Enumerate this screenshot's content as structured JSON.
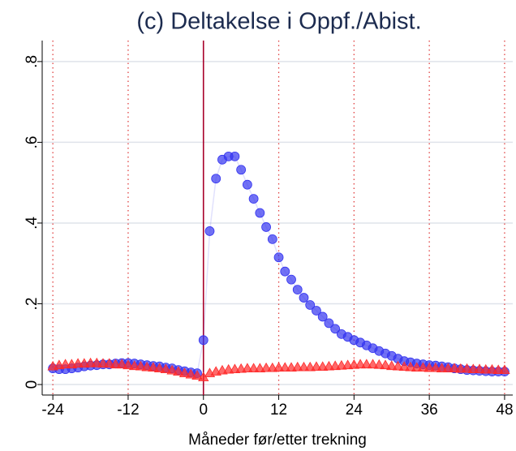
{
  "chart_data": {
    "type": "scatter",
    "title": "(c) Deltakelse i Oppf./Abist.",
    "x_label": "Måneder før/etter trekning",
    "x": [
      -24,
      -23,
      -22,
      -21,
      -20,
      -19,
      -18,
      -17,
      -16,
      -15,
      -14,
      -13,
      -12,
      -11,
      -10,
      -9,
      -8,
      -7,
      -6,
      -5,
      -4,
      -3,
      -2,
      -1,
      0,
      1,
      2,
      3,
      4,
      5,
      6,
      7,
      8,
      9,
      10,
      11,
      12,
      13,
      14,
      15,
      16,
      17,
      18,
      19,
      20,
      21,
      22,
      23,
      24,
      25,
      26,
      27,
      28,
      29,
      30,
      31,
      32,
      33,
      34,
      35,
      36,
      37,
      38,
      39,
      40,
      41,
      42,
      43,
      44,
      45,
      46,
      47,
      48
    ],
    "series": [
      {
        "color": "#3535f0",
        "marker": "circle",
        "line": true,
        "values": [
          0.04,
          0.038,
          0.038,
          0.04,
          0.042,
          0.045,
          0.047,
          0.048,
          0.05,
          0.05,
          0.052,
          0.053,
          0.053,
          0.052,
          0.05,
          0.048,
          0.046,
          0.045,
          0.042,
          0.04,
          0.036,
          0.033,
          0.03,
          0.028,
          0.11,
          0.38,
          0.51,
          0.557,
          0.565,
          0.565,
          0.532,
          0.495,
          0.46,
          0.425,
          0.39,
          0.36,
          0.315,
          0.28,
          0.26,
          0.235,
          0.215,
          0.197,
          0.183,
          0.168,
          0.152,
          0.138,
          0.125,
          0.118,
          0.11,
          0.104,
          0.097,
          0.09,
          0.083,
          0.077,
          0.071,
          0.064,
          0.058,
          0.055,
          0.052,
          0.05,
          0.048,
          0.047,
          0.045,
          0.043,
          0.04,
          0.038,
          0.036,
          0.035,
          0.034,
          0.033,
          0.032,
          0.032,
          0.032
        ]
      },
      {
        "color": "#ff2a2a",
        "marker": "triangle",
        "line": false,
        "values": [
          0.045,
          0.048,
          0.05,
          0.05,
          0.052,
          0.052,
          0.053,
          0.053,
          0.052,
          0.052,
          0.05,
          0.05,
          0.048,
          0.046,
          0.045,
          0.043,
          0.042,
          0.04,
          0.038,
          0.035,
          0.032,
          0.028,
          0.025,
          0.022,
          0.018,
          0.028,
          0.032,
          0.035,
          0.037,
          0.038,
          0.039,
          0.04,
          0.04,
          0.04,
          0.041,
          0.041,
          0.042,
          0.042,
          0.042,
          0.043,
          0.043,
          0.043,
          0.044,
          0.044,
          0.045,
          0.046,
          0.047,
          0.048,
          0.049,
          0.05,
          0.05,
          0.05,
          0.049,
          0.048,
          0.046,
          0.045,
          0.044,
          0.043,
          0.042,
          0.042,
          0.041,
          0.041,
          0.04,
          0.04,
          0.04,
          0.039,
          0.039,
          0.038,
          0.038,
          0.037,
          0.037,
          0.036,
          0.036
        ]
      }
    ],
    "xlim": [
      -25.7,
      49.3
    ],
    "xticks": [
      -24,
      -12,
      0,
      12,
      24,
      36,
      48
    ],
    "ylim": [
      -0.026,
      0.852
    ],
    "yticks": [
      0,
      {
        "value": 0.2,
        "label": ".2"
      },
      {
        "value": 0.4,
        "label": ".4"
      },
      {
        "value": 0.6,
        "label": ".6"
      },
      {
        "value": 0.8,
        "label": ".8"
      }
    ],
    "grid": true,
    "vline": 0,
    "vline_color": "#a8002a"
  }
}
